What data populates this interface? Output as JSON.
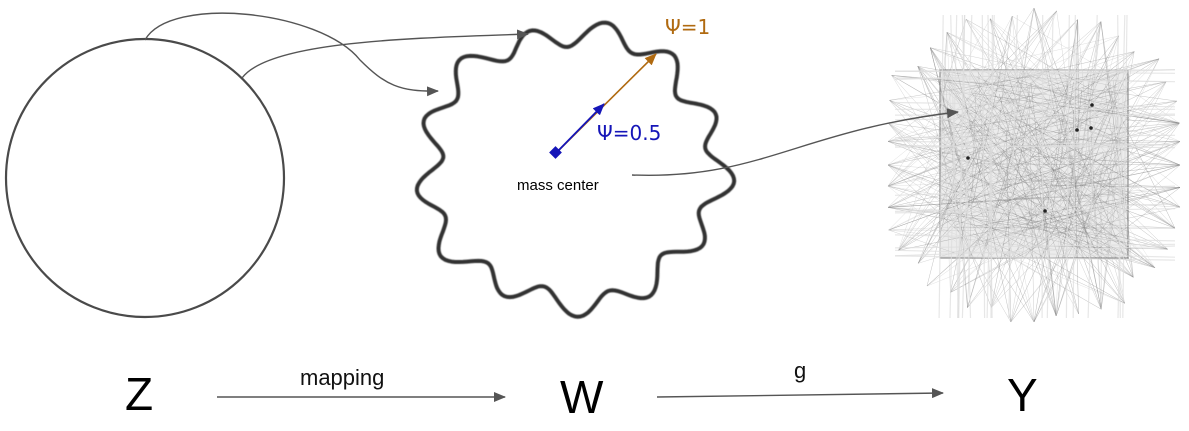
{
  "labels": {
    "z": "Z",
    "w": "W",
    "y": "Y",
    "mapping": "mapping",
    "g": "g",
    "mass_center": "mass center",
    "psi_half": "Ψ=0.5",
    "psi_one": "Ψ=1"
  },
  "colors": {
    "psi_half": "#1515b8",
    "psi_one": "#b06a10",
    "outline": "#3a3a3a",
    "arrow": "#555555"
  }
}
